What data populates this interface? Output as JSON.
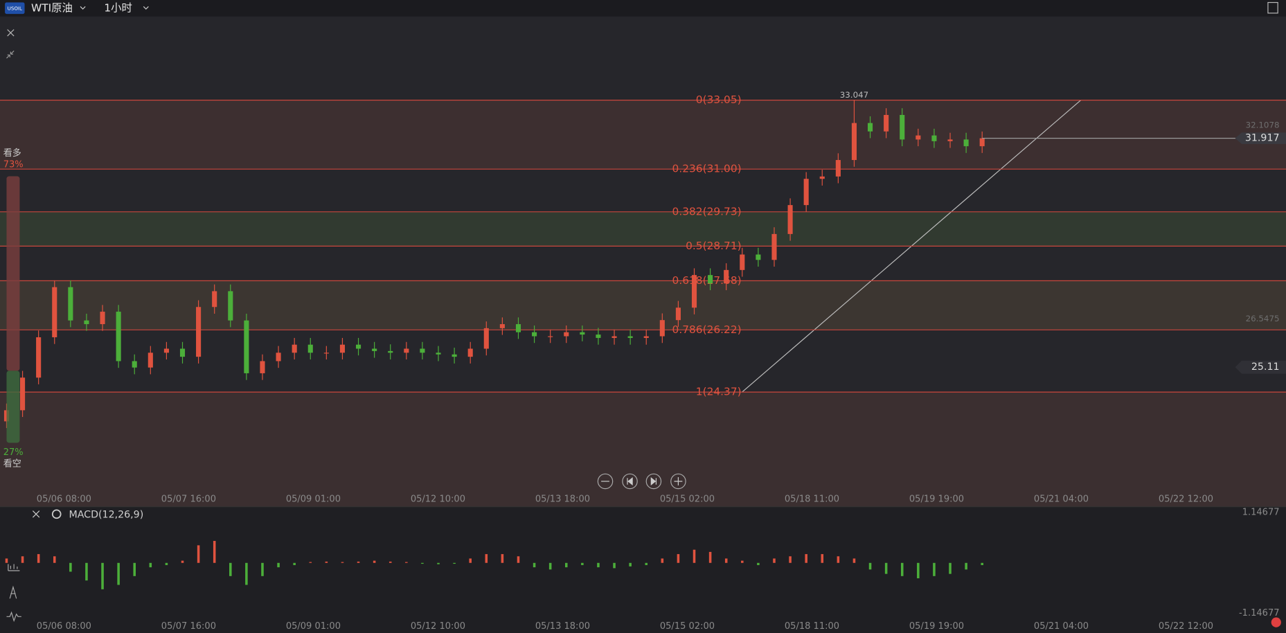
{
  "header": {
    "symbol_icon": "USOIL",
    "instrument": "WTI原油",
    "interval": "1小时"
  },
  "sentiment": {
    "labels": [
      "看多",
      "看空"
    ],
    "values": [
      73,
      27
    ],
    "value_labels": [
      "73%",
      "27%"
    ]
  },
  "chart_data": {
    "type": "candlestick",
    "x_labels": [
      "05/06 08:00",
      "05/07 16:00",
      "05/09 01:00",
      "05/12 10:00",
      "05/13 18:00",
      "05/15 02:00",
      "05/18 11:00",
      "05/19 19:00",
      "05/21 04:00",
      "05/22 12:00"
    ],
    "open": [
      23.5,
      23.83,
      24.8,
      26.0,
      27.49,
      26.5,
      26.39,
      26.76,
      25.29,
      25.1,
      25.54,
      25.66,
      25.42,
      26.9,
      27.37,
      26.5,
      24.93,
      25.29,
      25.54,
      25.78,
      25.54,
      25.54,
      25.78,
      25.66,
      25.59,
      25.54,
      25.66,
      25.54,
      25.49,
      25.42,
      25.66,
      26.27,
      26.39,
      26.15,
      26.03,
      26.03,
      26.15,
      26.08,
      25.98,
      26.03,
      25.98,
      26.03,
      26.51,
      26.88,
      27.85,
      27.6,
      28.0,
      28.46,
      28.3,
      29.07,
      29.93,
      30.71,
      30.78,
      31.27,
      32.37,
      32.12,
      32.61,
      31.88,
      32.0,
      31.83,
      31.88,
      31.68
    ],
    "high": [
      24.03,
      25.0,
      26.2,
      27.69,
      27.69,
      26.7,
      26.96,
      26.96,
      25.49,
      25.74,
      25.86,
      25.86,
      27.1,
      27.57,
      27.57,
      26.7,
      25.49,
      25.74,
      25.98,
      25.98,
      25.74,
      25.98,
      25.98,
      25.86,
      25.79,
      25.86,
      25.86,
      25.74,
      25.69,
      25.86,
      26.47,
      26.59,
      26.59,
      26.35,
      26.23,
      26.35,
      26.35,
      26.28,
      26.23,
      26.23,
      26.23,
      26.71,
      27.08,
      28.05,
      28.05,
      28.2,
      28.66,
      28.66,
      29.27,
      30.13,
      30.91,
      30.98,
      31.47,
      33.047,
      32.57,
      32.81,
      32.81,
      32.2,
      32.2,
      32.08,
      32.08,
      32.117
    ],
    "low": [
      23.3,
      23.63,
      24.6,
      25.8,
      26.3,
      26.19,
      26.19,
      25.09,
      24.9,
      24.9,
      25.34,
      25.22,
      25.22,
      26.7,
      26.3,
      24.73,
      24.73,
      25.09,
      25.34,
      25.34,
      25.34,
      25.34,
      25.46,
      25.39,
      25.34,
      25.34,
      25.34,
      25.29,
      25.22,
      25.22,
      25.46,
      26.07,
      25.95,
      25.83,
      25.83,
      25.83,
      25.88,
      25.78,
      25.78,
      25.78,
      25.78,
      25.83,
      26.31,
      26.68,
      27.4,
      27.4,
      27.8,
      28.1,
      28.1,
      28.87,
      29.73,
      30.51,
      30.58,
      31.07,
      31.92,
      31.92,
      31.68,
      31.68,
      31.63,
      31.63,
      31.48,
      31.48
    ],
    "close": [
      23.83,
      24.8,
      26.0,
      27.49,
      26.5,
      26.39,
      26.76,
      25.29,
      25.1,
      25.54,
      25.66,
      25.42,
      26.9,
      27.37,
      26.5,
      24.93,
      25.29,
      25.54,
      25.78,
      25.54,
      25.54,
      25.78,
      25.66,
      25.59,
      25.54,
      25.66,
      25.54,
      25.49,
      25.42,
      25.66,
      26.27,
      26.39,
      26.15,
      26.03,
      26.03,
      26.15,
      26.08,
      25.98,
      26.03,
      25.98,
      26.03,
      26.51,
      26.88,
      27.85,
      27.6,
      28.0,
      28.46,
      28.3,
      29.07,
      29.93,
      30.71,
      30.78,
      31.27,
      32.37,
      32.12,
      32.61,
      31.88,
      32.0,
      31.83,
      31.88,
      31.68,
      31.917
    ],
    "up_color": "#e0533f",
    "down_color": "#4caf3a",
    "ylim": [
      21.4,
      35.54
    ],
    "fib_levels": [
      {
        "value": 33.05,
        "label": "0(33.05)"
      },
      {
        "value": 31.0,
        "label": "0.236(31.00)"
      },
      {
        "value": 29.73,
        "label": "0.382(29.73)"
      },
      {
        "value": 28.71,
        "label": "0.5(28.71)"
      },
      {
        "value": 27.68,
        "label": "0.618(27.68)"
      },
      {
        "value": 26.22,
        "label": "0.786(26.22)"
      },
      {
        "value": 24.37,
        "label": "1(24.37)"
      }
    ],
    "current_price": 31.917,
    "marker_price": 25.11,
    "faint_prices": [
      32.1078,
      26.5475
    ]
  },
  "macd": {
    "type": "bar",
    "title": "MACD(12,26,9)",
    "ylim": [
      -1.14677,
      1.14677
    ],
    "yticks": [
      1.14677,
      -1.14677
    ],
    "values": [
      0.1,
      0.15,
      0.2,
      0.15,
      -0.2,
      -0.4,
      -0.6,
      -0.5,
      -0.3,
      -0.1,
      -0.05,
      0.05,
      0.4,
      0.5,
      -0.3,
      -0.5,
      -0.3,
      -0.1,
      -0.05,
      0.02,
      0.03,
      0.02,
      0.03,
      0.05,
      0.03,
      0.02,
      -0.02,
      -0.03,
      -0.02,
      0.1,
      0.2,
      0.2,
      0.15,
      -0.1,
      -0.15,
      -0.1,
      -0.05,
      -0.1,
      -0.12,
      -0.08,
      -0.05,
      0.1,
      0.2,
      0.3,
      0.25,
      0.1,
      0.05,
      -0.05,
      0.1,
      0.15,
      0.2,
      0.2,
      0.15,
      0.1,
      -0.15,
      -0.25,
      -0.3,
      -0.35,
      -0.3,
      -0.25,
      -0.15,
      -0.05
    ]
  }
}
